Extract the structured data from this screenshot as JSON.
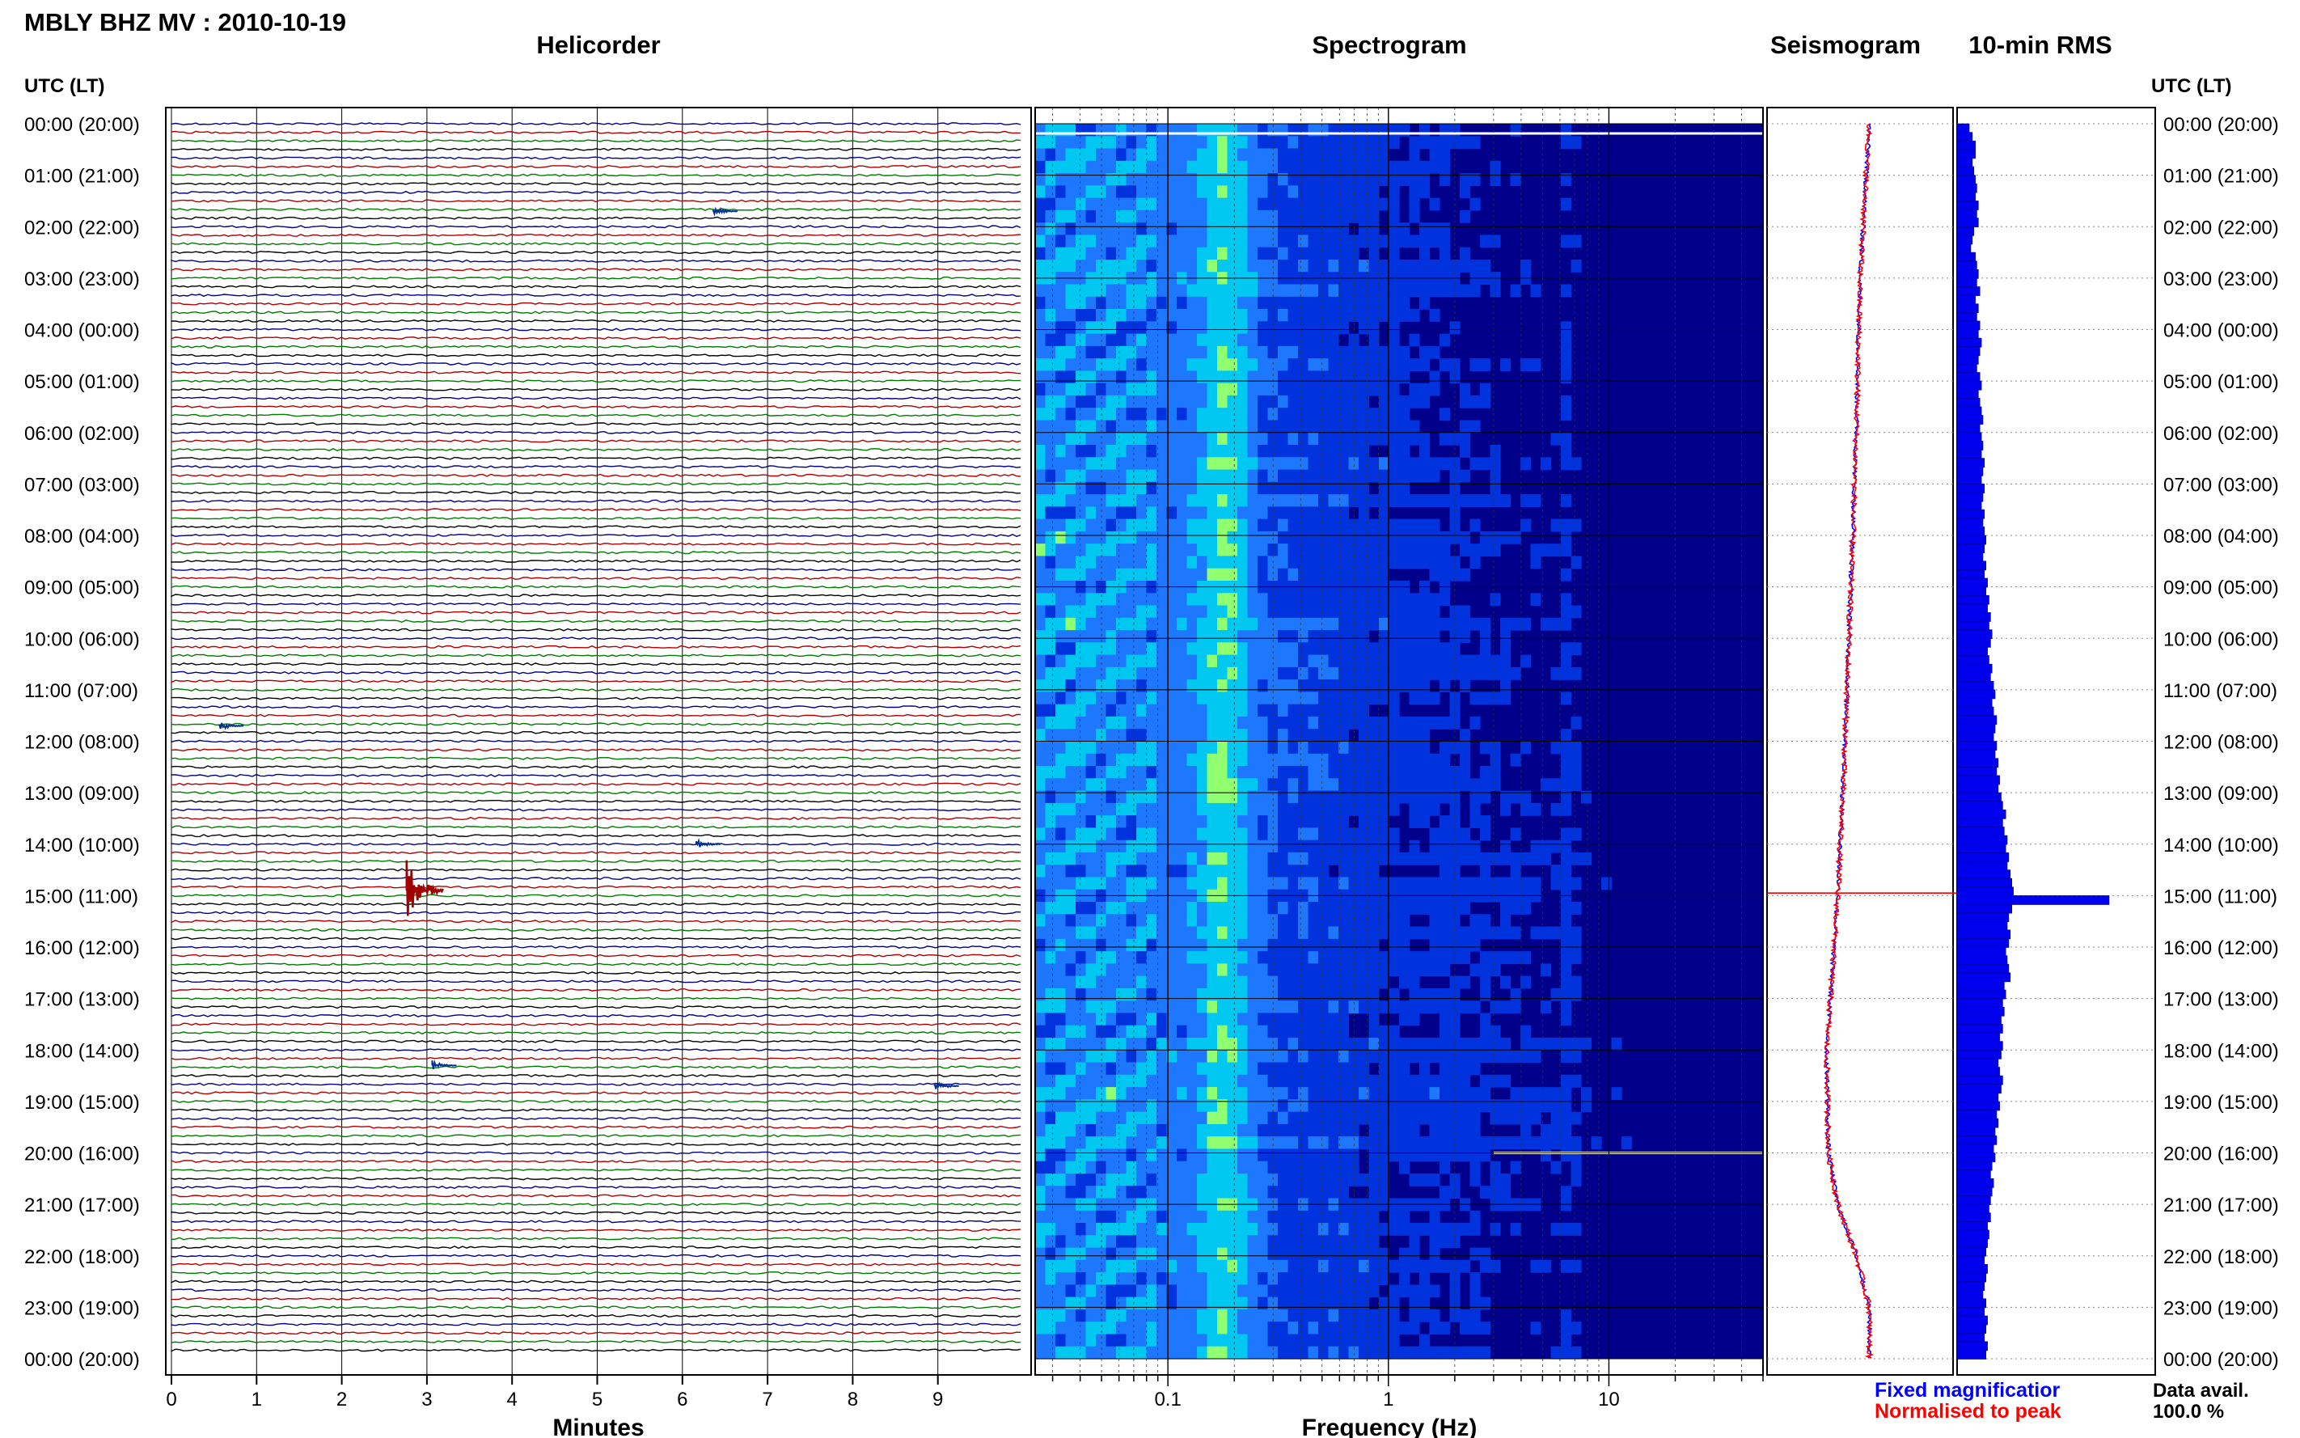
{
  "header": {
    "station_title": "MBLY BHZ MV : 2010-10-19"
  },
  "panels": {
    "helicorder_title": "Helicorder",
    "spectrogram_title": "Spectrogram",
    "seismogram_title": "Seismogram",
    "rms_title": "10-min RMS"
  },
  "time_axis": {
    "left_label": "UTC (LT)",
    "right_label": "UTC (LT)",
    "hours": [
      "00:00 (20:00)",
      "01:00 (21:00)",
      "02:00 (22:00)",
      "03:00 (23:00)",
      "04:00 (00:00)",
      "05:00 (01:00)",
      "06:00 (02:00)",
      "07:00 (03:00)",
      "08:00 (04:00)",
      "09:00 (05:00)",
      "10:00 (06:00)",
      "11:00 (07:00)",
      "12:00 (08:00)",
      "13:00 (09:00)",
      "14:00 (10:00)",
      "15:00 (11:00)",
      "16:00 (12:00)",
      "17:00 (13:00)",
      "18:00 (14:00)",
      "19:00 (15:00)",
      "20:00 (16:00)",
      "21:00 (17:00)",
      "22:00 (18:00)",
      "23:00 (19:00)",
      "00:00 (20:00)"
    ]
  },
  "helicorder": {
    "xlabel": "Minutes",
    "xticks": [
      "0",
      "1",
      "2",
      "3",
      "4",
      "5",
      "6",
      "7",
      "8",
      "9"
    ],
    "trace_colors": [
      "#000080",
      "#b00000",
      "#007a00",
      "#000000"
    ],
    "events": [
      {
        "minute": 2.8,
        "hour": 14.9,
        "amplitude": "large"
      },
      {
        "minute": 6.2,
        "hour": 14.0,
        "amplitude": "small"
      },
      {
        "minute": 6.4,
        "hour": 1.7,
        "amplitude": "small"
      },
      {
        "minute": 0.6,
        "hour": 11.7,
        "amplitude": "small"
      },
      {
        "minute": 3.1,
        "hour": 18.3,
        "amplitude": "small"
      },
      {
        "minute": 9.0,
        "hour": 18.7,
        "amplitude": "small"
      }
    ]
  },
  "spectrogram": {
    "xlabel": "Frequency (Hz)",
    "xscale": "log",
    "xlim": [
      0.025,
      50
    ],
    "xticks": [
      "0.1",
      "1",
      "10"
    ],
    "colormap": [
      "#00008b",
      "#0033dd",
      "#1e78ff",
      "#00c8f0",
      "#90ff70"
    ]
  },
  "seismogram": {
    "series": [
      {
        "name": "Fixed magnification",
        "color": "#0000ff"
      },
      {
        "name": "Normalised to peak",
        "color": "#ff0000"
      }
    ],
    "legend_lines": [
      "Fixed magnificatior",
      "Normalised to peak"
    ],
    "offset_profile": [
      [
        0,
        0.55
      ],
      [
        3,
        0.5
      ],
      [
        6,
        0.48
      ],
      [
        9,
        0.45
      ],
      [
        12,
        0.42
      ],
      [
        15,
        0.38
      ],
      [
        18,
        0.32
      ],
      [
        20,
        0.33
      ],
      [
        21,
        0.38
      ],
      [
        22,
        0.48
      ],
      [
        23,
        0.55
      ],
      [
        24,
        0.55
      ]
    ],
    "spike_hour": 14.95
  },
  "rms": {
    "values": [
      0.08,
      0.1,
      0.12,
      0.12,
      0.1,
      0.11,
      0.12,
      0.13,
      0.12,
      0.14,
      0.13,
      0.14,
      0.11,
      0.1,
      0.09,
      0.12,
      0.13,
      0.14,
      0.13,
      0.15,
      0.12,
      0.14,
      0.13,
      0.15,
      0.14,
      0.16,
      0.15,
      0.14,
      0.13,
      0.15,
      0.16,
      0.14,
      0.15,
      0.16,
      0.17,
      0.15,
      0.16,
      0.17,
      0.16,
      0.18,
      0.17,
      0.16,
      0.18,
      0.17,
      0.16,
      0.18,
      0.17,
      0.18,
      0.19,
      0.18,
      0.17,
      0.19,
      0.18,
      0.2,
      0.19,
      0.21,
      0.2,
      0.22,
      0.21,
      0.23,
      0.22,
      0.2,
      0.21,
      0.23,
      0.22,
      0.24,
      0.25,
      0.23,
      0.24,
      0.26,
      0.25,
      0.24,
      0.26,
      0.25,
      0.27,
      0.26,
      0.28,
      0.27,
      0.29,
      0.3,
      0.32,
      0.3,
      0.31,
      0.33,
      0.32,
      0.34,
      0.33,
      0.35,
      0.36,
      0.37,
      1.0,
      0.36,
      0.34,
      0.33,
      0.35,
      0.34,
      0.32,
      0.33,
      0.34,
      0.35,
      0.31,
      0.32,
      0.3,
      0.31,
      0.29,
      0.3,
      0.28,
      0.3,
      0.29,
      0.27,
      0.28,
      0.3,
      0.29,
      0.27,
      0.28,
      0.26,
      0.27,
      0.25,
      0.26,
      0.24,
      0.25,
      0.23,
      0.22,
      0.24,
      0.23,
      0.22,
      0.21,
      0.22,
      0.2,
      0.21,
      0.2,
      0.19,
      0.18,
      0.2,
      0.19,
      0.18,
      0.17,
      0.19,
      0.18,
      0.2,
      0.19,
      0.18,
      0.2,
      0.19
    ],
    "peak_hour": 15.0
  },
  "footer": {
    "data_avail_label": "Data avail.",
    "data_avail_value": "100.0 %"
  }
}
